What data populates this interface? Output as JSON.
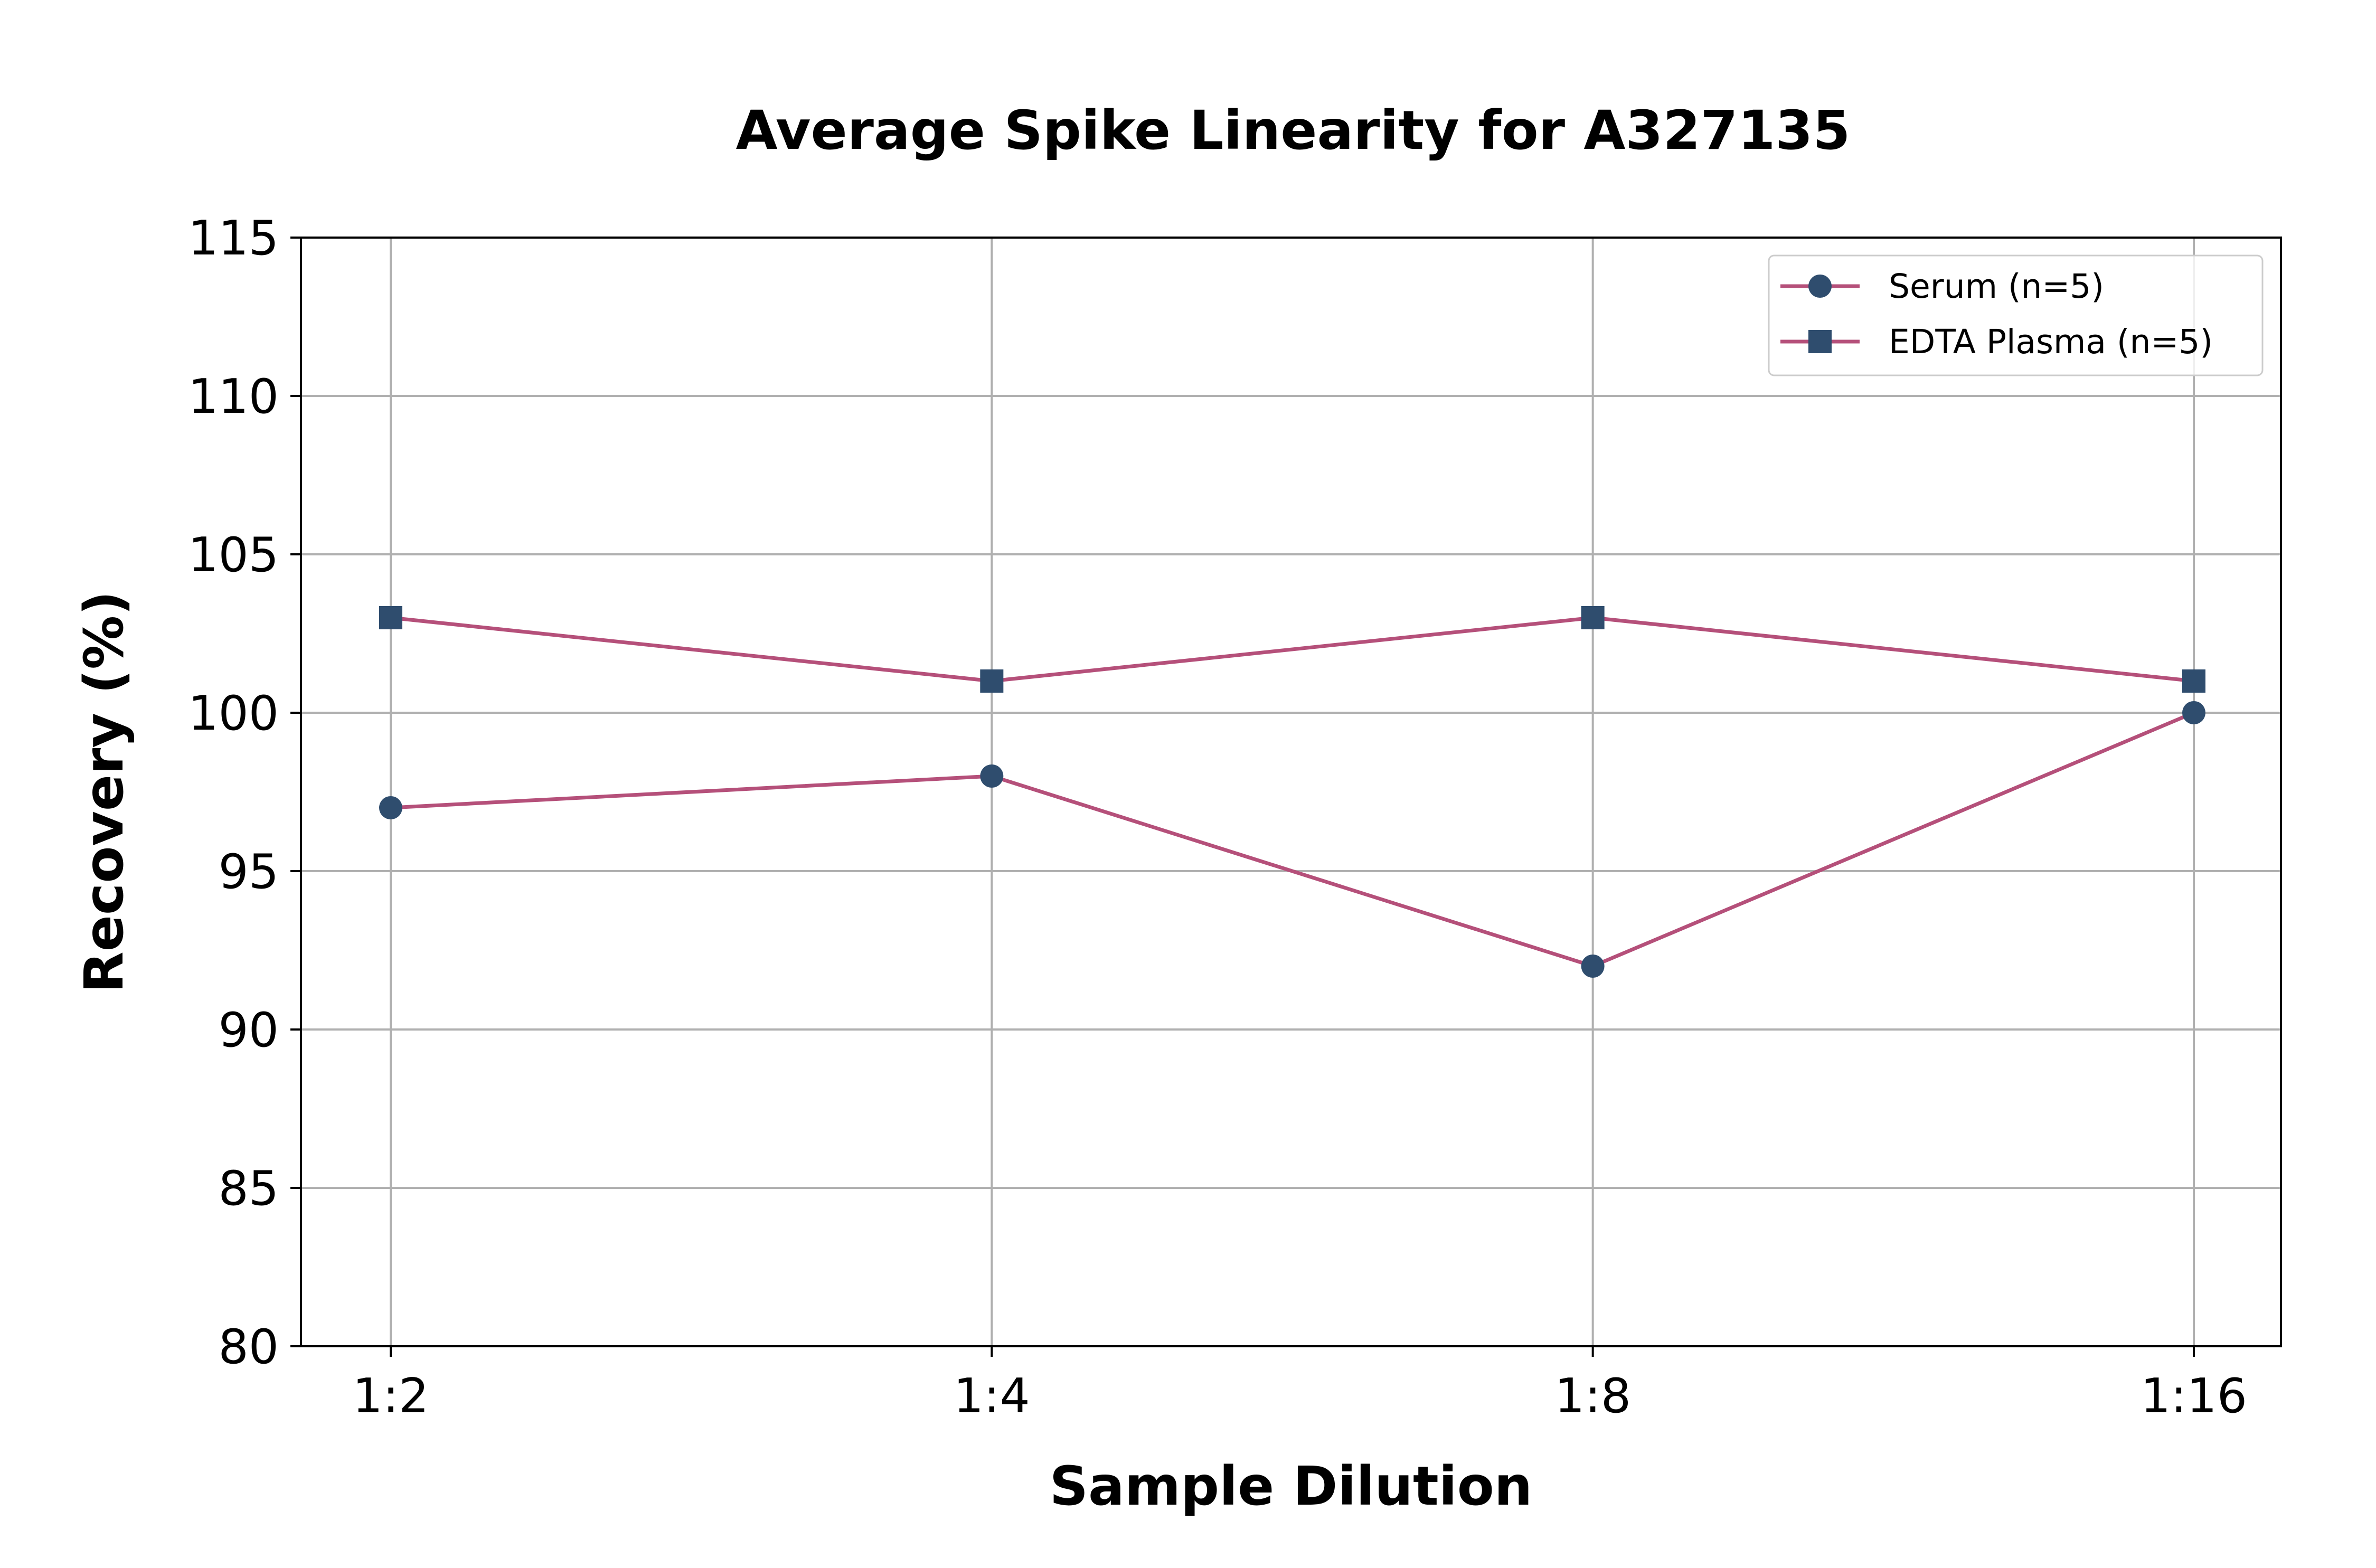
{
  "chart_data": {
    "type": "line",
    "title": "Average Spike Linearity for A327135",
    "xlabel": "Sample Dilution",
    "ylabel": "Recovery (%)",
    "categories": [
      "1:2",
      "1:4",
      "1:8",
      "1:16"
    ],
    "ylim": [
      80,
      115
    ],
    "yticks": [
      80,
      85,
      90,
      95,
      100,
      105,
      110,
      115
    ],
    "grid": true,
    "legend_position": "top-right",
    "series": [
      {
        "name": "Serum (n=5)",
        "values": [
          97,
          98,
          92,
          100
        ],
        "marker": "circle",
        "line_color": "#b5507a",
        "marker_color": "#2f4d6e"
      },
      {
        "name": "EDTA Plasma (n=5)",
        "values": [
          103,
          101,
          103,
          101
        ],
        "marker": "square",
        "line_color": "#b5507a",
        "marker_color": "#2f4d6e"
      }
    ]
  }
}
